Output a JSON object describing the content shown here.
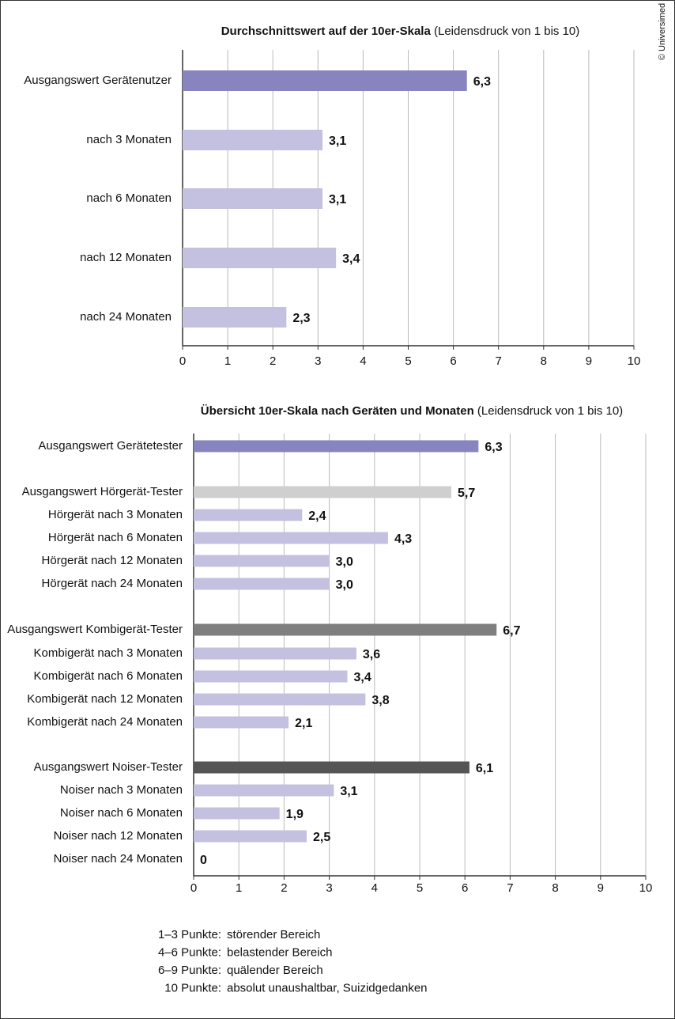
{
  "chart_data": [
    {
      "type": "bar",
      "orientation": "horizontal",
      "title": "Durchschnittswert auf der 10er-Skala",
      "subtitle": "(Leidensdruck von 1 bis 10)",
      "categories": [
        "Ausgangswert Gerätenutzer",
        "nach 3 Monaten",
        "nach 6 Monaten",
        "nach 12 Monaten",
        "nach 24 Monaten"
      ],
      "values": [
        6.3,
        3.1,
        3.1,
        3.4,
        2.3
      ],
      "value_labels": [
        "6,3",
        "3,1",
        "3,1",
        "3,4",
        "2,3"
      ],
      "colors": [
        "#8884bf",
        "#c4c0e0",
        "#c4c0e0",
        "#c4c0e0",
        "#c4c0e0"
      ],
      "xlim": [
        0,
        10
      ],
      "xticks": [
        0,
        1,
        2,
        3,
        4,
        5,
        6,
        7,
        8,
        9,
        10
      ],
      "grid": true
    },
    {
      "type": "bar",
      "orientation": "horizontal",
      "title": "Übersicht 10er-Skala nach Geräten und Monaten",
      "subtitle": "(Leidensdruck von 1 bis 10)",
      "categories": [
        "Ausgangswert Gerätetester",
        "Ausgangswert Hörgerät-Tester",
        "Hörgerät nach 3 Monaten",
        "Hörgerät nach 6 Monaten",
        "Hörgerät nach 12 Monaten",
        "Hörgerät nach 24 Monaten",
        "Ausgangswert Kombigerät-Tester",
        "Kombigerät nach 3 Monaten",
        "Kombigerät nach 6 Monaten",
        "Kombigerät nach 12 Monaten",
        "Kombigerät nach 24 Monaten",
        "Ausgangswert Noiser-Tester",
        "Noiser nach 3 Monaten",
        "Noiser nach 6 Monaten",
        "Noiser nach 12 Monaten",
        "Noiser nach 24 Monaten"
      ],
      "values": [
        6.3,
        5.7,
        2.4,
        4.3,
        3.0,
        3.0,
        6.7,
        3.6,
        3.4,
        3.8,
        2.1,
        6.1,
        3.1,
        1.9,
        2.5,
        0
      ],
      "value_labels": [
        "6,3",
        "5,7",
        "2,4",
        "4,3",
        "3,0",
        "3,0",
        "6,7",
        "3,6",
        "3,4",
        "3,8",
        "2,1",
        "6,1",
        "3,1",
        "1,9",
        "2,5",
        "0"
      ],
      "colors": [
        "#8884bf",
        "#cfcfcf",
        "#c4c0e0",
        "#c4c0e0",
        "#c4c0e0",
        "#c4c0e0",
        "#7f7f7f",
        "#c4c0e0",
        "#c4c0e0",
        "#c4c0e0",
        "#c4c0e0",
        "#555555",
        "#c4c0e0",
        "#c4c0e0",
        "#c4c0e0",
        "#c4c0e0"
      ],
      "xlim": [
        0,
        10
      ],
      "xticks": [
        0,
        1,
        2,
        3,
        4,
        5,
        6,
        7,
        8,
        9,
        10
      ],
      "grid": true
    }
  ],
  "notes": [
    [
      "1–3 Punkte:",
      "störender Bereich"
    ],
    [
      "4–6 Punkte:",
      "belastender Bereich"
    ],
    [
      "6–9 Punkte:",
      "quälender Bereich"
    ],
    [
      "10 Punkte:",
      "absolut unaushaltbar, Suizidgedanken"
    ]
  ],
  "copyright": "© Universimed"
}
